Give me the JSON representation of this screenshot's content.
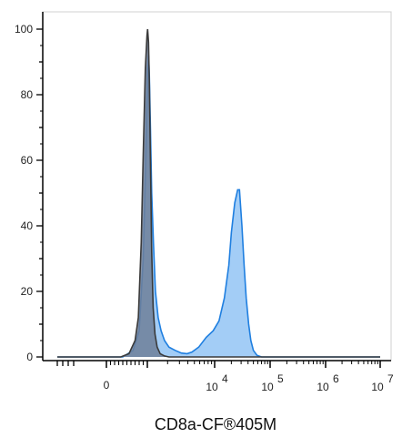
{
  "chart_data": {
    "type": "area",
    "xlabel": "CD8a-CF®405M",
    "ylabel": "",
    "title": "",
    "x_scale": "biexponential",
    "ylim": [
      0,
      105
    ],
    "yticks": [
      0,
      20,
      40,
      60,
      80,
      100
    ],
    "xticks": [
      {
        "label": "0",
        "exp": ""
      },
      {
        "label": "10",
        "exp": "4"
      },
      {
        "label": "10",
        "exp": "5"
      },
      {
        "label": "10",
        "exp": "6"
      },
      {
        "label": "10",
        "exp": "7"
      }
    ],
    "grid": false,
    "legend": "none",
    "series": [
      {
        "color": "#1f7fe0",
        "fill": "#99c8f5",
        "points": [
          [
            -900,
            0
          ],
          [
            400,
            0
          ],
          [
            650,
            2
          ],
          [
            800,
            8
          ],
          [
            900,
            30
          ],
          [
            950,
            55
          ],
          [
            990,
            78
          ],
          [
            1010,
            88
          ],
          [
            1040,
            92
          ],
          [
            1070,
            86
          ],
          [
            1110,
            70
          ],
          [
            1160,
            50
          ],
          [
            1230,
            35
          ],
          [
            1320,
            20
          ],
          [
            1450,
            12
          ],
          [
            1600,
            8
          ],
          [
            1800,
            5
          ],
          [
            2100,
            3
          ],
          [
            2600,
            2
          ],
          [
            3200,
            1.2
          ],
          [
            3900,
            1
          ],
          [
            4600,
            1.5
          ],
          [
            5800,
            3
          ],
          [
            7500,
            6
          ],
          [
            9500,
            8
          ],
          [
            12000,
            11
          ],
          [
            15000,
            18
          ],
          [
            18000,
            28
          ],
          [
            20000,
            38
          ],
          [
            23000,
            47
          ],
          [
            26000,
            51
          ],
          [
            28000,
            51
          ],
          [
            31000,
            40
          ],
          [
            34000,
            28
          ],
          [
            37000,
            18
          ],
          [
            41000,
            10
          ],
          [
            45000,
            5
          ],
          [
            50000,
            2
          ],
          [
            58000,
            0.5
          ],
          [
            70000,
            0
          ],
          [
            10000000,
            0
          ]
        ]
      },
      {
        "color": "#3a3a3a",
        "fill": "#6f7f99",
        "points": [
          [
            -900,
            0
          ],
          [
            350,
            0
          ],
          [
            550,
            1
          ],
          [
            700,
            5
          ],
          [
            780,
            12
          ],
          [
            850,
            35
          ],
          [
            900,
            62
          ],
          [
            950,
            88
          ],
          [
            990,
            98
          ],
          [
            1010,
            100
          ],
          [
            1040,
            96
          ],
          [
            1070,
            84
          ],
          [
            1110,
            60
          ],
          [
            1160,
            32
          ],
          [
            1220,
            15
          ],
          [
            1300,
            7
          ],
          [
            1400,
            3
          ],
          [
            1550,
            1
          ],
          [
            1800,
            0.3
          ],
          [
            2100,
            0
          ],
          [
            10000000,
            0
          ]
        ]
      }
    ]
  }
}
